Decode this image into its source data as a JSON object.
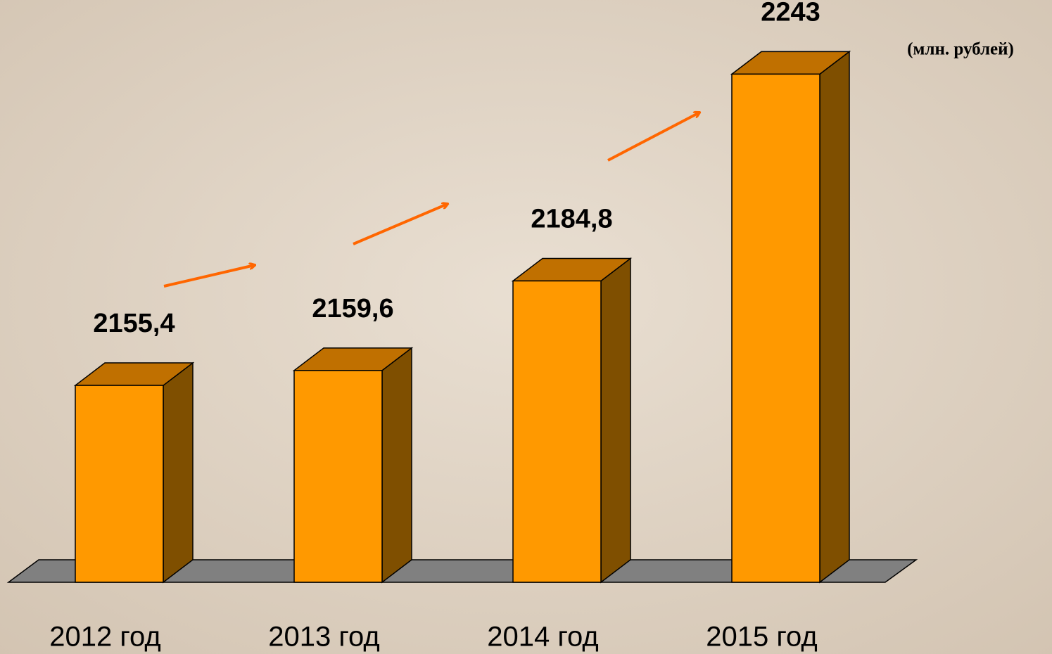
{
  "chart_data": {
    "type": "bar3d",
    "unit": "(млн. рублей)",
    "categories": [
      "2012 год",
      "2013 год",
      "2014 год",
      "2015 год"
    ],
    "values": [
      2155.4,
      2159.6,
      2184.8,
      2243
    ],
    "value_labels": [
      "2155,4",
      "2159,6",
      "2184,8",
      "2243"
    ],
    "color": "#ff9900",
    "ylim": [
      2100,
      2250
    ]
  }
}
